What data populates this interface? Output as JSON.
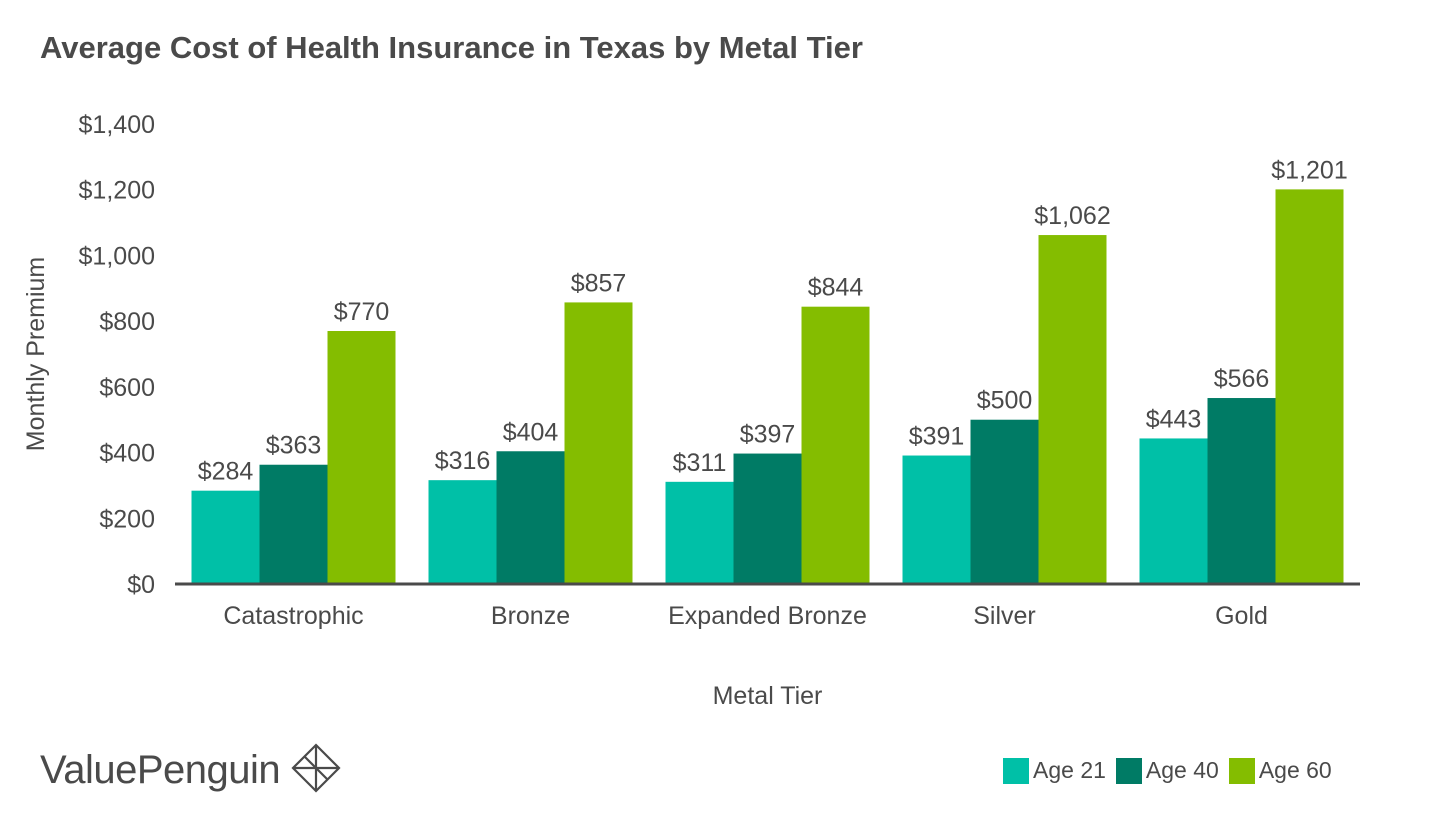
{
  "brand": {
    "name": "ValuePenguin",
    "logo_icon": "diamond-cube-icon"
  },
  "colors": {
    "age21": "#00c0a7",
    "age40": "#007b65",
    "age60": "#84bd00",
    "axis": "#4a4a4a",
    "text": "#4a4a4a"
  },
  "chart_data": {
    "type": "bar",
    "title": "Average Cost of Health Insurance in Texas by Metal Tier",
    "xlabel": "Metal Tier",
    "ylabel": "Monthly Premium",
    "categories": [
      "Catastrophic",
      "Bronze",
      "Expanded Bronze",
      "Silver",
      "Gold"
    ],
    "series": [
      {
        "name": "Age 21",
        "values": [
          284,
          316,
          311,
          391,
          443
        ],
        "labels": [
          "$284",
          "$316",
          "$311",
          "$391",
          "$443"
        ]
      },
      {
        "name": "Age 40",
        "values": [
          363,
          404,
          397,
          500,
          566
        ],
        "labels": [
          "$363",
          "$404",
          "$397",
          "$500",
          "$566"
        ]
      },
      {
        "name": "Age 60",
        "values": [
          770,
          857,
          844,
          1062,
          1201
        ],
        "labels": [
          "$770",
          "$857",
          "$844",
          "$1,062",
          "$1,201"
        ]
      }
    ],
    "ylim": [
      0,
      1400
    ],
    "yticks": [
      0,
      200,
      400,
      600,
      800,
      1000,
      1200,
      1400
    ],
    "ytick_labels": [
      "$0",
      "$200",
      "$400",
      "$600",
      "$800",
      "$1,000",
      "$1,200",
      "$1,400"
    ],
    "grid": false,
    "legend_position": "bottom-right"
  }
}
